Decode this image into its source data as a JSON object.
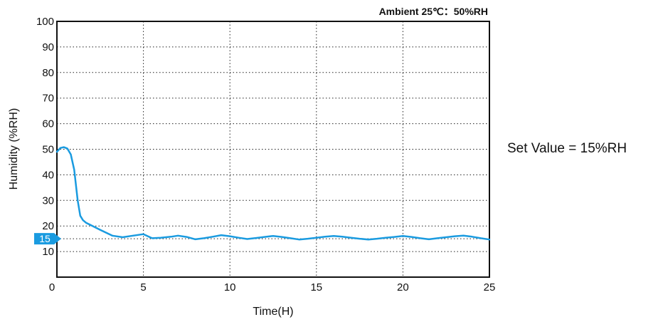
{
  "chart_data": {
    "type": "line",
    "title": "Ambient 25℃：50%RH",
    "xlabel": "Time(H)",
    "ylabel": "Humidity (%RH)",
    "xlim": [
      0,
      25
    ],
    "ylim": [
      0,
      100
    ],
    "x_ticks": [
      0,
      5,
      10,
      15,
      20,
      25
    ],
    "y_ticks": [
      10,
      20,
      30,
      40,
      50,
      60,
      70,
      80,
      90,
      100
    ],
    "grid": true,
    "line_color": "#1a9be0",
    "marker_color": "#1a9be0",
    "set_value": 15,
    "set_value_label": "15",
    "annotation": "Set Value = 15%RH",
    "series": [
      {
        "x": [
          0,
          0.2,
          0.4,
          0.6,
          0.8,
          1.0,
          1.2,
          1.35,
          1.5,
          1.7,
          2.0,
          2.5,
          3.2,
          3.8,
          4.4,
          5.0,
          5.5,
          6.0,
          6.6,
          7.0,
          7.5,
          8.0,
          8.5,
          9.0,
          9.5,
          10.0,
          10.5,
          11.0,
          11.5,
          12.0,
          12.5,
          13.0,
          13.5,
          14.0,
          14.5,
          15.0,
          15.5,
          16.0,
          16.5,
          17.0,
          17.5,
          18.0,
          18.5,
          19.0,
          19.5,
          20.0,
          20.5,
          21.0,
          21.5,
          22.0,
          22.5,
          23.0,
          23.5,
          24.0,
          24.5,
          25.0
        ],
        "y": [
          49,
          50.5,
          50.8,
          50.3,
          48.0,
          42.0,
          30.0,
          24.0,
          22.3,
          21.2,
          20.2,
          18.5,
          16.2,
          15.6,
          16.2,
          16.8,
          15.2,
          15.4,
          15.8,
          16.2,
          15.7,
          14.8,
          15.2,
          15.8,
          16.4,
          16.0,
          15.4,
          14.9,
          15.3,
          15.7,
          16.1,
          15.7,
          15.2,
          14.7,
          15.0,
          15.4,
          15.8,
          16.1,
          15.8,
          15.4,
          15.0,
          14.7,
          15.0,
          15.4,
          15.7,
          16.1,
          15.7,
          15.2,
          14.8,
          15.2,
          15.6,
          16.0,
          16.2,
          15.8,
          15.2,
          14.7
        ]
      }
    ]
  }
}
